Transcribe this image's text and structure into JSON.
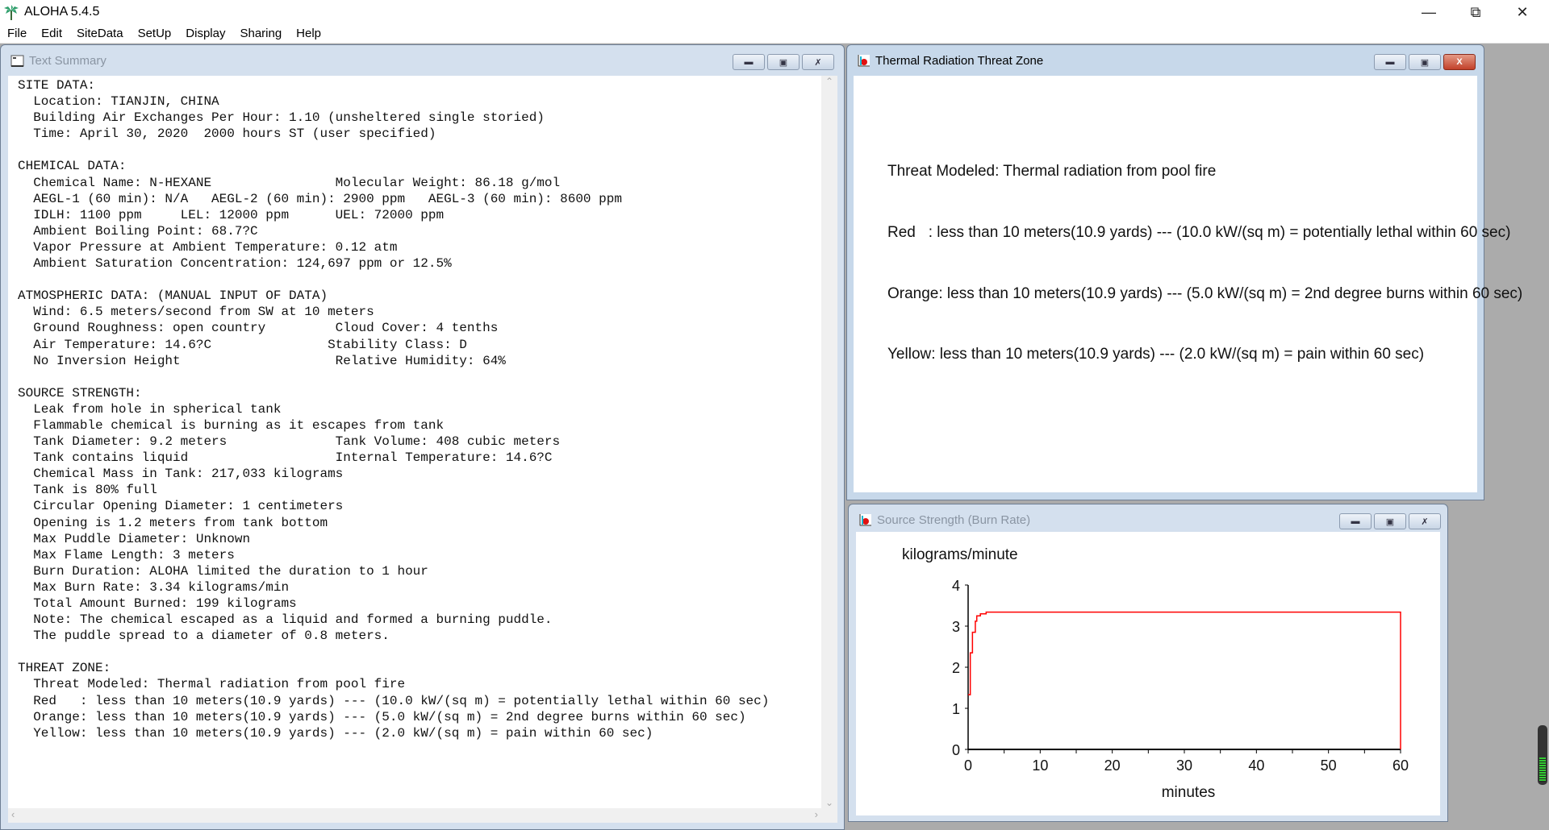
{
  "app": {
    "title": "ALOHA 5.4.5",
    "icon": "palm-tree-icon"
  },
  "menu": [
    "File",
    "Edit",
    "SiteData",
    "SetUp",
    "Display",
    "Sharing",
    "Help"
  ],
  "text_summary": {
    "title": "Text Summary",
    "lines": [
      "SITE DATA:",
      "  Location: TIANJIN, CHINA",
      "  Building Air Exchanges Per Hour: 1.10 (unsheltered single storied)",
      "  Time: April 30, 2020  2000 hours ST (user specified)",
      "",
      "CHEMICAL DATA:",
      "  Chemical Name: N-HEXANE                Molecular Weight: 86.18 g/mol",
      "  AEGL-1 (60 min): N/A   AEGL-2 (60 min): 2900 ppm   AEGL-3 (60 min): 8600 ppm",
      "  IDLH: 1100 ppm     LEL: 12000 ppm      UEL: 72000 ppm",
      "  Ambient Boiling Point: 68.7?C",
      "  Vapor Pressure at Ambient Temperature: 0.12 atm",
      "  Ambient Saturation Concentration: 124,697 ppm or 12.5%",
      "",
      "ATMOSPHERIC DATA: (MANUAL INPUT OF DATA)",
      "  Wind: 6.5 meters/second from SW at 10 meters",
      "  Ground Roughness: open country         Cloud Cover: 4 tenths",
      "  Air Temperature: 14.6?C               Stability Class: D",
      "  No Inversion Height                    Relative Humidity: 64%",
      "",
      "SOURCE STRENGTH:",
      "  Leak from hole in spherical tank",
      "  Flammable chemical is burning as it escapes from tank",
      "  Tank Diameter: 9.2 meters              Tank Volume: 408 cubic meters",
      "  Tank contains liquid                   Internal Temperature: 14.6?C",
      "  Chemical Mass in Tank: 217,033 kilograms",
      "  Tank is 80% full",
      "  Circular Opening Diameter: 1 centimeters",
      "  Opening is 1.2 meters from tank bottom",
      "  Max Puddle Diameter: Unknown",
      "  Max Flame Length: 3 meters",
      "  Burn Duration: ALOHA limited the duration to 1 hour",
      "  Max Burn Rate: 3.34 kilograms/min",
      "  Total Amount Burned: 199 kilograms",
      "  Note: The chemical escaped as a liquid and formed a burning puddle.",
      "  The puddle spread to a diameter of 0.8 meters.",
      "",
      "THREAT ZONE:",
      "  Threat Modeled: Thermal radiation from pool fire",
      "  Red   : less than 10 meters(10.9 yards) --- (10.0 kW/(sq m) = potentially lethal within 60 sec)",
      "  Orange: less than 10 meters(10.9 yards) --- (5.0 kW/(sq m) = 2nd degree burns within 60 sec)",
      "  Yellow: less than 10 meters(10.9 yards) --- (2.0 kW/(sq m) = pain within 60 sec)"
    ]
  },
  "threat_zone": {
    "title": "Thermal Radiation Threat Zone",
    "lines": [
      "Threat Modeled: Thermal radiation from pool fire",
      "Red   : less than 10 meters(10.9 yards) --- (10.0 kW/(sq m) = potentially lethal within 60 sec)",
      "Orange: less than 10 meters(10.9 yards) --- (5.0 kW/(sq m) = 2nd degree burns within 60 sec)",
      "Yellow: less than 10 meters(10.9 yards) --- (2.0 kW/(sq m) = pain within 60 sec)"
    ]
  },
  "source_strength": {
    "title": "Source Strength (Burn Rate)",
    "chart_data": {
      "type": "line",
      "ylabel": "kilograms/minute",
      "xlabel": "minutes",
      "xlim": [
        0,
        60
      ],
      "ylim": [
        0,
        4
      ],
      "xticks": [
        "0",
        "10",
        "20",
        "30",
        "40",
        "50",
        "60"
      ],
      "yticks": [
        "0",
        "1",
        "2",
        "3",
        "4"
      ],
      "line_color": "#ff0000",
      "series": [
        {
          "step": true,
          "x": [
            0,
            0.3,
            0.6,
            1.0,
            1.2,
            1.7,
            2.5,
            60,
            60
          ],
          "y": [
            1.33,
            2.35,
            2.85,
            3.12,
            3.25,
            3.3,
            3.34,
            3.34,
            0
          ]
        }
      ]
    }
  }
}
